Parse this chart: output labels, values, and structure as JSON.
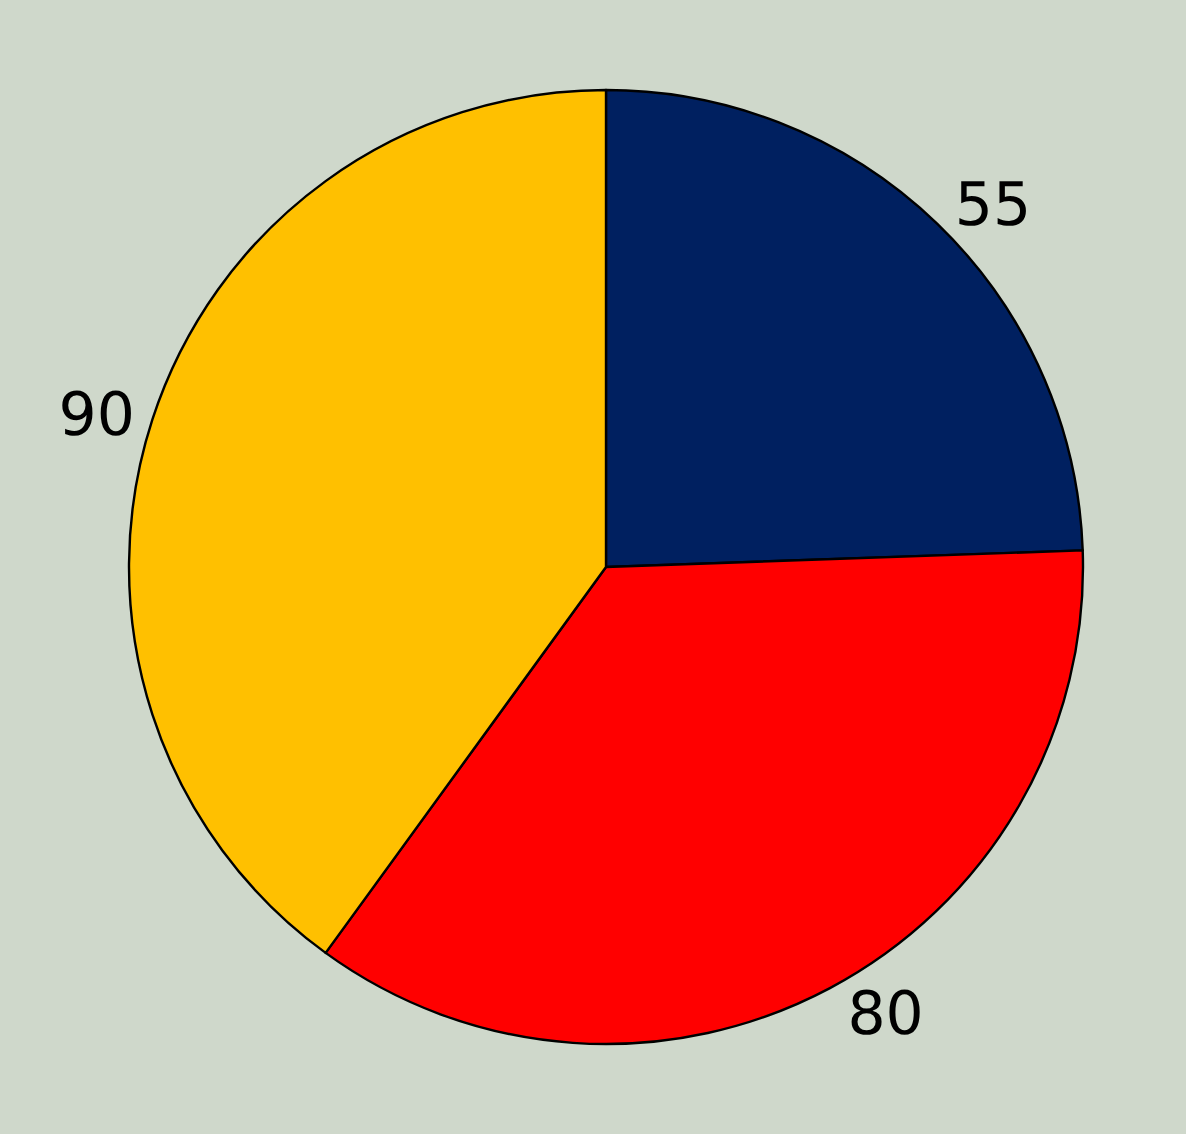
{
  "chart_data": {
    "type": "pie",
    "categories": [
      null,
      null,
      null
    ],
    "values": [
      55,
      80,
      90
    ],
    "colors": [
      "#002060",
      "#ff0000",
      "#ffc000"
    ],
    "data_labels": true
  }
}
